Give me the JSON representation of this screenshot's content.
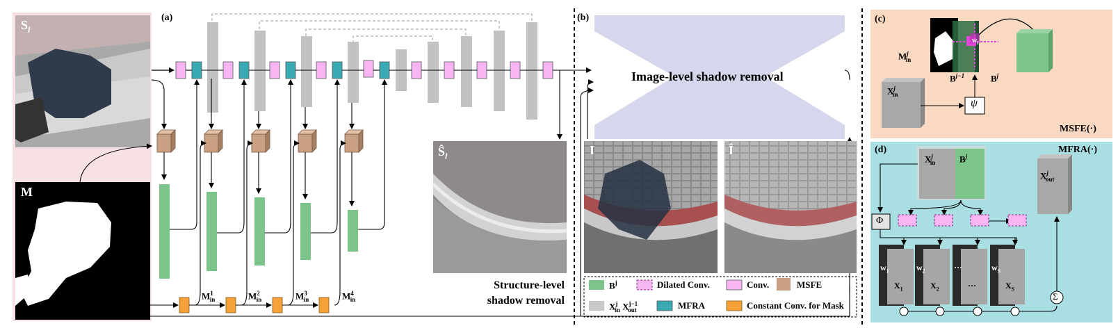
{
  "panels": {
    "a": "(a)",
    "b": "(b)",
    "c": "(c)",
    "d": "(d)"
  },
  "images": {
    "structure_input": "S",
    "structure_input_sub": "l",
    "mask": "M",
    "structure_output": "Ŝ",
    "structure_output_sub": "l",
    "image_input": "I",
    "image_output": "Î"
  },
  "mask_labels": [
    {
      "base": "M",
      "sub": "in",
      "sup": "1"
    },
    {
      "base": "M",
      "sub": "in",
      "sup": "2"
    },
    {
      "base": "M",
      "sub": "in",
      "sup": "3"
    },
    {
      "base": "M",
      "sub": "in",
      "sup": "4"
    }
  ],
  "titles": {
    "structure_level_line1": "Structure-level",
    "structure_level_line2": "shadow removal",
    "image_level": "Image-level  shadow removal"
  },
  "msfe": {
    "title": "MSFE(·)",
    "m_in": "M",
    "m_in_sub": "in",
    "m_in_sup": "j",
    "x_in": "X",
    "x_in_sub": "in",
    "x_in_sup": "j",
    "b_prev": "B",
    "b_prev_sup": "j−1",
    "b": "B",
    "b_sup": "j",
    "w": "w",
    "w_sub": "i",
    "psi": "ψ"
  },
  "mfra": {
    "title": "MFRA(·)",
    "x_in": "X",
    "x_in_sub": "in",
    "x_in_sup": "j",
    "b": "B",
    "b_sup": "j",
    "x_out": "X",
    "x_out_sub": "out",
    "x_out_sup": "j",
    "phi": "Φ",
    "w_labels": [
      "w",
      "w",
      "···",
      "w"
    ],
    "w_subs": [
      "1",
      "2",
      "",
      "S"
    ],
    "x_labels": [
      "X",
      "X",
      "···",
      "X"
    ],
    "x_subs": [
      "1",
      "2",
      "",
      "S"
    ],
    "sum": "Σ",
    "dot": "⊙"
  },
  "legend": {
    "items": [
      {
        "label": "B",
        "sup": "j",
        "color": "#7cc48a"
      },
      {
        "label": "Dilated Conv.",
        "color": "#f4b8f0"
      },
      {
        "label": "Conv.",
        "color": "#f7b6f2"
      },
      {
        "label": "MSFE",
        "color": "#c9a083"
      },
      {
        "label": "X",
        "sub": "in",
        "sup": "j",
        "label2": "X",
        "sub2": "out",
        "sup2": "j−1",
        "color": "#c8c8c8"
      },
      {
        "label": "MFRA",
        "color": "#3aa9b4"
      },
      {
        "label": "Constant Conv. for Mask",
        "color": "#f6a23a"
      }
    ]
  },
  "colors": {
    "panel_a_bg": "#f7e1e4",
    "panel_c_bg": "#f9d9c2",
    "panel_d_bg": "#a9dee2",
    "hourglass": "#d6d6ec",
    "green": "#7cc48a",
    "pink": "#f7b6f2",
    "teal": "#3aa9b4",
    "gray": "#c2c2c2",
    "orange": "#f6a23a",
    "msfe": "#c9a083"
  }
}
